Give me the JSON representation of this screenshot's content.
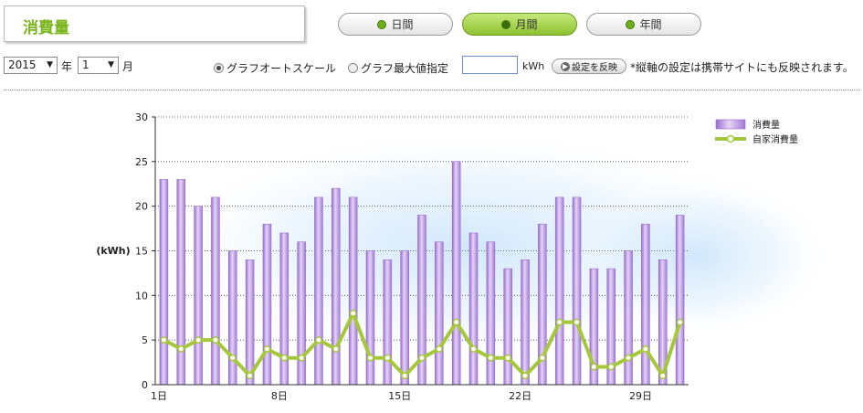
{
  "header": {
    "title": "消費量"
  },
  "period_tabs": [
    {
      "label": "日間",
      "active": false
    },
    {
      "label": "月間",
      "active": true
    },
    {
      "label": "年間",
      "active": false
    }
  ],
  "controls": {
    "year_value": "2015",
    "year_unit": "年",
    "month_value": "1",
    "month_unit": "月",
    "radio_auto": "グラフオートスケール",
    "radio_auto_selected": true,
    "radio_max": "グラフ最大値指定",
    "max_input_value": "",
    "max_unit": "kWh",
    "apply_button": "設定を反映",
    "note": "*縦軸の設定は携帯サイトにも反映されます。"
  },
  "colors": {
    "accent": "#7ab51d",
    "bar": "#b58ee0",
    "line": "#a5c83a"
  },
  "chart_data": {
    "type": "bar",
    "ylabel": "(kWh)",
    "ylim": [
      0,
      30
    ],
    "yticks": [
      0,
      5,
      10,
      15,
      20,
      25,
      30
    ],
    "x": [
      1,
      2,
      3,
      4,
      5,
      6,
      7,
      8,
      9,
      10,
      11,
      12,
      13,
      14,
      15,
      16,
      17,
      18,
      19,
      20,
      21,
      22,
      23,
      24,
      25,
      26,
      27,
      28,
      29,
      30,
      31
    ],
    "xtick_labels": [
      {
        "day": 1,
        "label": "1日"
      },
      {
        "day": 8,
        "label": "8日"
      },
      {
        "day": 15,
        "label": "15日"
      },
      {
        "day": 22,
        "label": "22日"
      },
      {
        "day": 29,
        "label": "29日"
      }
    ],
    "grid": true,
    "legend_position": "top-right",
    "series": [
      {
        "name": "消費量",
        "type": "bar",
        "values": [
          23,
          23,
          20,
          21,
          15,
          14,
          18,
          17,
          16,
          21,
          22,
          21,
          15,
          14,
          15,
          19,
          16,
          25,
          17,
          16,
          13,
          14,
          18,
          21,
          21,
          13,
          13,
          15,
          18,
          14,
          19
        ]
      },
      {
        "name": "自家消費量",
        "type": "line",
        "values": [
          5,
          4,
          5,
          5,
          3,
          1,
          4,
          3,
          3,
          5,
          4,
          8,
          3,
          3,
          1,
          3,
          4,
          7,
          4,
          3,
          3,
          1,
          3,
          7,
          7,
          2,
          2,
          3,
          4,
          1,
          7
        ]
      }
    ]
  }
}
